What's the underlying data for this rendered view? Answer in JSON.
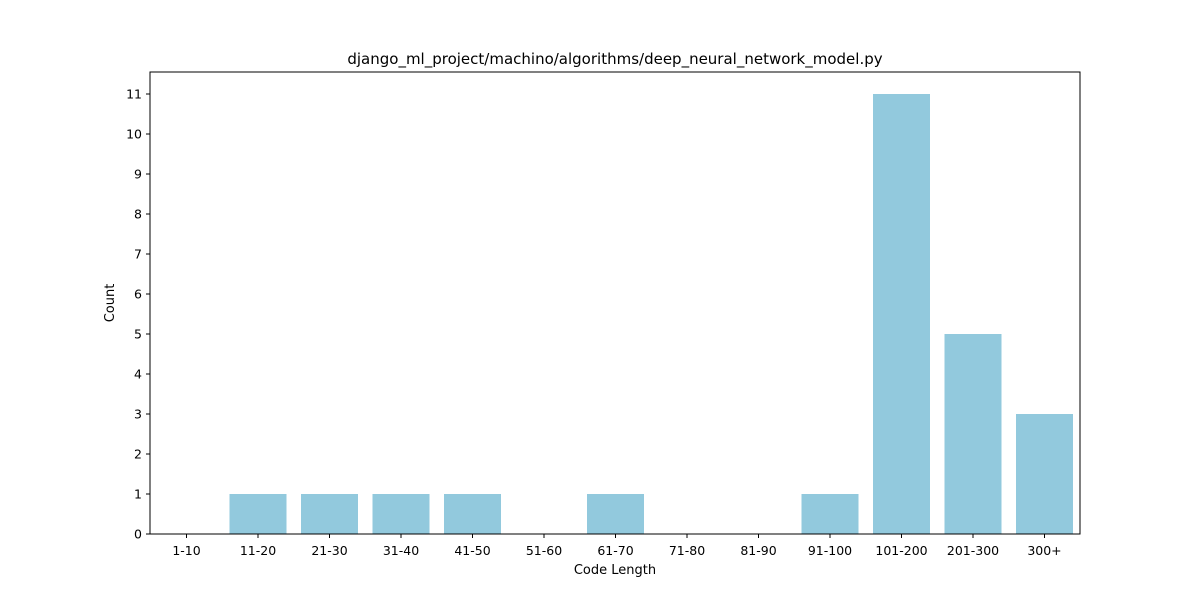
{
  "chart_data": {
    "type": "bar",
    "title": "django_ml_project/machino/algorithms/deep_neural_network_model.py",
    "xlabel": "Code Length",
    "ylabel": "Count",
    "categories": [
      "1-10",
      "11-20",
      "21-30",
      "31-40",
      "41-50",
      "51-60",
      "61-70",
      "71-80",
      "81-90",
      "91-100",
      "101-200",
      "201-300",
      "300+"
    ],
    "values": [
      0,
      1,
      1,
      1,
      1,
      0,
      1,
      0,
      0,
      1,
      11,
      5,
      3
    ],
    "ylim": [
      0,
      11.55
    ],
    "yticks": [
      "0",
      "1",
      "2",
      "3",
      "4",
      "5",
      "6",
      "7",
      "8",
      "9",
      "10",
      "11"
    ],
    "bar_color": "#92c9dd",
    "grid": false
  }
}
